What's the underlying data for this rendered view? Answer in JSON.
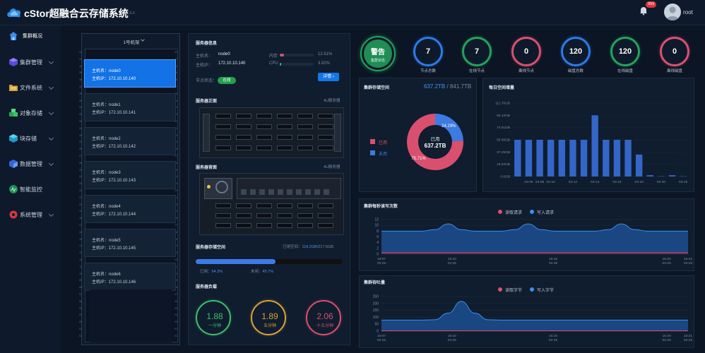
{
  "app": {
    "brand": "cStor超融合云存储系统",
    "version": "v1.5.0",
    "notification_count": "959",
    "username": "root"
  },
  "colors": {
    "accent": "#1477e8",
    "used": "#d9506e",
    "free": "#3d7be3",
    "ok": "#22a04d"
  },
  "sidebar": {
    "items": [
      {
        "label": "集群概况",
        "icon": "home-icon",
        "active": true
      },
      {
        "label": "集群管理",
        "icon": "cube-icon"
      },
      {
        "label": "文件系统",
        "icon": "folder-icon"
      },
      {
        "label": "对象存储",
        "icon": "objects-icon"
      },
      {
        "label": "块存储",
        "icon": "block-icon"
      },
      {
        "label": "数据管理",
        "icon": "data-icon"
      },
      {
        "label": "智能监控",
        "icon": "monitor-icon"
      },
      {
        "label": "系统管理",
        "icon": "settings-icon"
      }
    ]
  },
  "rack": {
    "title": "1号机架",
    "numbers": [
      "42",
      "41",
      "40",
      "39",
      "38",
      "37",
      "36",
      "35",
      "34",
      "33",
      "32",
      "31",
      "30",
      "29",
      "28",
      "27",
      "26",
      "25",
      "24",
      "23",
      "22",
      "21",
      "20",
      "19",
      "18",
      "17",
      "16",
      "15",
      "14",
      "13",
      "12",
      "11",
      "10",
      "09",
      "08",
      "07",
      "06",
      "05",
      "04",
      "03",
      "02",
      "01"
    ],
    "nodes": [
      {
        "name": "主机名：node0",
        "ip": "主机IP：172.10.10.140",
        "active": true
      },
      {
        "name": "主机名：node1",
        "ip": "主机IP：172.10.10.141"
      },
      {
        "name": "主机名：node2",
        "ip": "主机IP：172.10.10.142"
      },
      {
        "name": "主机名：node3",
        "ip": "主机IP：172.10.10.143"
      },
      {
        "name": "主机名：node4",
        "ip": "主机IP：172.10.10.144"
      },
      {
        "name": "主机名：node5",
        "ip": "主机IP：172.10.10.145"
      },
      {
        "name": "主机名：node6",
        "ip": "主机IP：172.10.10.146"
      }
    ]
  },
  "server_info": {
    "title": "服务器信息",
    "host_label": "主机名：",
    "host": "node0",
    "ip_label": "主机IP：",
    "ip": "172.10.10.140",
    "status_label": "节点状态：",
    "status": "在线",
    "memory_label": "内存",
    "memory_pct": "12.51%",
    "memory_value": 12.51,
    "cpu_label": "CPU",
    "cpu_pct": "3.82%",
    "cpu_value": 3.82,
    "detail_button": "详情"
  },
  "server_front": {
    "title": "服务器正面",
    "model": "4U服务器"
  },
  "server_back": {
    "title": "服务器背面",
    "model": "4U服务器"
  },
  "server_storage": {
    "title": "服务器存储空间",
    "used_label": "已用空间：",
    "used": "118.2GB",
    "total": "/217.5GB",
    "used_pct_label": "已用：",
    "used_pct": "54.3%",
    "free_pct_label": "未用：",
    "free_pct": "45.7%",
    "used_value": 54.3
  },
  "server_load": {
    "title": "服务器负载",
    "gauges": [
      {
        "value": "1.88",
        "label": "一分钟",
        "color": "#3fbf6a"
      },
      {
        "value": "1.89",
        "label": "五分钟",
        "color": "#d9a23a"
      },
      {
        "value": "2.06",
        "label": "十五分钟",
        "color": "#d9506e"
      }
    ]
  },
  "cluster": {
    "alert_label": "警告",
    "alert_sub": "集群状态",
    "stats": [
      {
        "value": "7",
        "label": "节点总数",
        "color": "#2b7be8"
      },
      {
        "value": "7",
        "label": "在线节点",
        "color": "#24a35a"
      },
      {
        "value": "0",
        "label": "离线节点",
        "color": "#d9506e"
      },
      {
        "value": "120",
        "label": "磁盘总数",
        "color": "#2b7be8"
      },
      {
        "value": "120",
        "label": "在线磁盘",
        "color": "#24a35a"
      },
      {
        "value": "0",
        "label": "离线磁盘",
        "color": "#d9506e"
      }
    ]
  },
  "cluster_storage": {
    "title": "集群存储空间",
    "used": "637.2TB",
    "total": " / 841.7TB",
    "center_label": "已用",
    "center_value": "637.2TB",
    "legend_used": "已用",
    "legend_free": "未用",
    "chart_data": {
      "type": "pie",
      "categories": [
        "已用",
        "未用"
      ],
      "values": [
        75.71,
        24.29
      ],
      "labels": [
        "75.71%",
        "24.29%"
      ]
    }
  },
  "daily_growth": {
    "title": "每日空间增量",
    "chart_data": {
      "type": "bar",
      "categories": [
        "03-07",
        "03-08",
        "03-09",
        "03-10",
        "03-11",
        "03-12",
        "03-13",
        "03-14",
        "03-15",
        "03-16",
        "03-17",
        "03-18",
        "03-19",
        "03-20",
        "03-21",
        "03-22"
      ],
      "x_tick_labels": [
        "03-08",
        "03-09",
        "03-10",
        "03-12",
        "03-14",
        "03-16",
        "03-18",
        "03-20",
        "03-22"
      ],
      "y_tick_labels": [
        "0.0GB",
        "18.63GB",
        "37.25GB",
        "55.88GB",
        "74.51GB",
        "93.13GB",
        "111.76GB"
      ],
      "values": [
        55.9,
        55.9,
        55.9,
        55.9,
        55.9,
        55.9,
        55.9,
        93.1,
        55.9,
        55.9,
        55.9,
        33.5,
        2,
        0.5,
        2,
        0.5
      ],
      "ylim": [
        0,
        111.76
      ]
    }
  },
  "iops": {
    "title": "集群每秒读写次数",
    "legend_read": "读取请求",
    "legend_write": "写入请求",
    "chart_data": {
      "type": "area",
      "y_ticks": [
        "0",
        "2",
        "4",
        "6",
        "8",
        "10",
        "12"
      ],
      "ylim": [
        0,
        12
      ],
      "x_ticks": [
        [
          "16:07",
          "03-25"
        ],
        [
          "16:10",
          "03-25"
        ],
        [
          "16:15",
          "03-25"
        ],
        [
          "16:20",
          "03-25"
        ],
        [
          "16:21",
          "03-25"
        ]
      ],
      "series": [
        {
          "name": "读取请求",
          "values": [
            0.5,
            0.5,
            0.5,
            0.5,
            0.5,
            0.5,
            0.5,
            0.5,
            0.5,
            0.5,
            0.5,
            0.5,
            0.5,
            0.5,
            0.5,
            0.5,
            0.5,
            0.5,
            0.5,
            0.5,
            0.5,
            0.5,
            0.5,
            0.5
          ]
        },
        {
          "name": "写入请求",
          "values": [
            8,
            8,
            8,
            8,
            8.5,
            10.5,
            8.5,
            8,
            8,
            8,
            8.5,
            10.5,
            8.5,
            8,
            8,
            8,
            8,
            8.5,
            10.5,
            8.5,
            8,
            8,
            8,
            8
          ]
        }
      ]
    }
  },
  "throughput": {
    "title": "集群吞吐量",
    "legend_read": "读取字节",
    "legend_write": "写入字节",
    "chart_data": {
      "type": "area",
      "y_ticks": [
        "0",
        "50",
        "100",
        "150",
        "200",
        "250"
      ],
      "ylim": [
        0,
        250
      ],
      "x_ticks": [
        [
          "16:07",
          "03-25"
        ],
        [
          "16:10",
          "03-25"
        ],
        [
          "16:15",
          "03-25"
        ],
        [
          "16:20",
          "03-25"
        ],
        [
          "16:21",
          "03-25"
        ]
      ],
      "series": [
        {
          "name": "读取字节",
          "values": [
            2,
            2,
            2,
            2,
            2,
            2,
            2,
            2,
            2,
            2,
            2,
            2,
            2,
            2,
            2,
            2,
            2,
            2,
            2,
            2,
            2,
            2,
            2,
            2
          ]
        },
        {
          "name": "写入字节",
          "values": [
            80,
            80,
            80,
            80,
            82,
            130,
            215,
            130,
            82,
            80,
            80,
            80,
            80,
            80,
            80,
            80,
            80,
            80,
            80,
            80,
            80,
            80,
            80,
            80
          ]
        }
      ]
    }
  }
}
